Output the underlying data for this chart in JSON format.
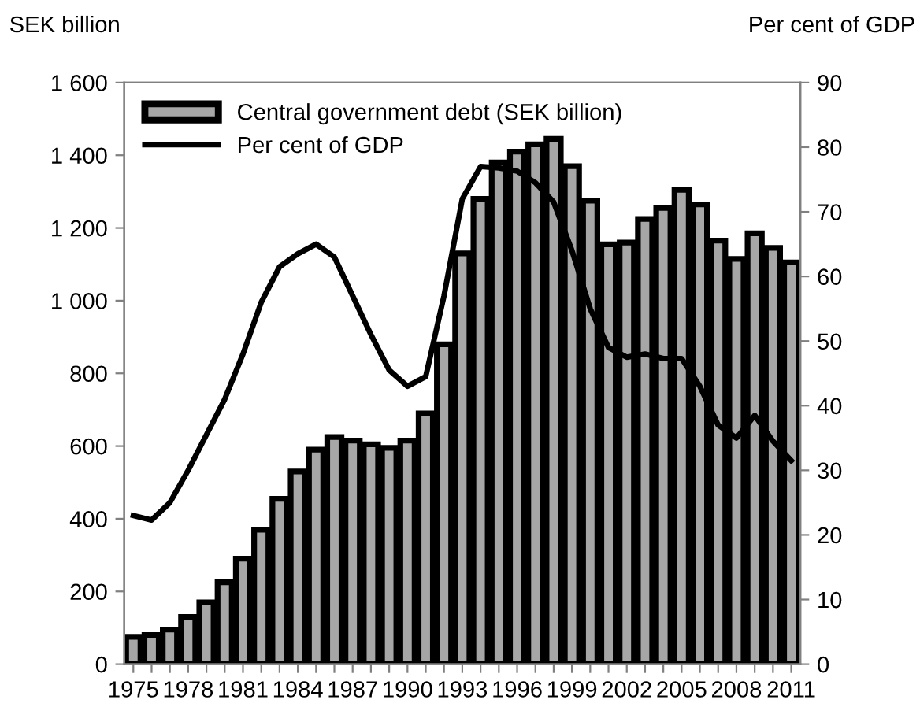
{
  "chart_data": {
    "type": "bar",
    "ylabel": "SEK billion",
    "y2label": "Per cent of GDP",
    "categories": [
      "1975",
      null,
      null,
      "1978",
      null,
      null,
      "1981",
      null,
      null,
      "1984",
      null,
      null,
      "1987",
      null,
      null,
      "1990",
      null,
      null,
      "1993",
      null,
      null,
      "1996",
      null,
      null,
      "1999",
      null,
      null,
      "2002",
      null,
      null,
      "2005",
      null,
      null,
      "2008",
      null,
      null,
      "2011"
    ],
    "series": [
      {
        "name": "Central government debt (SEK billion)",
        "color": "#a6a6a6",
        "values": [
          75,
          80,
          95,
          130,
          170,
          225,
          290,
          370,
          455,
          530,
          590,
          625,
          615,
          605,
          595,
          615,
          690,
          880,
          1130,
          1280,
          1380,
          1410,
          1430,
          1445,
          1370,
          1275,
          1155,
          1160,
          1225,
          1255,
          1305,
          1265,
          1165,
          1115,
          1185,
          1145,
          1105
        ]
      },
      {
        "name": "Per cent of GDP",
        "type": "line",
        "axis": "y2",
        "color": "#000000",
        "values": [
          23,
          22.3,
          25,
          30,
          35.5,
          41,
          48,
          56,
          61.5,
          63.5,
          65,
          63,
          57,
          51,
          45.5,
          43,
          44.5,
          57,
          72,
          77,
          76.8,
          76.3,
          74.5,
          71.5,
          64,
          55,
          49,
          47.5,
          48,
          47.3,
          47.3,
          43,
          37,
          35,
          38.5,
          34.5,
          31.5
        ]
      }
    ],
    "ylim": [
      0,
      1600
    ],
    "yticks": [
      0,
      {
        "value": 200,
        "label": "200"
      },
      {
        "value": 400,
        "label": "400"
      },
      {
        "value": 600,
        "label": "600"
      },
      {
        "value": 800,
        "label": "800"
      },
      {
        "value": 1000,
        "label": "1 000"
      },
      {
        "value": 1200,
        "label": "1 200"
      },
      {
        "value": 1400,
        "label": "1 400"
      },
      {
        "value": 1600,
        "label": "1 600"
      }
    ],
    "y2lim": [
      0,
      90
    ],
    "y2ticks": [
      0,
      10,
      20,
      30,
      40,
      50,
      60,
      70,
      80,
      90
    ],
    "legend": "top left",
    "grid": false
  }
}
